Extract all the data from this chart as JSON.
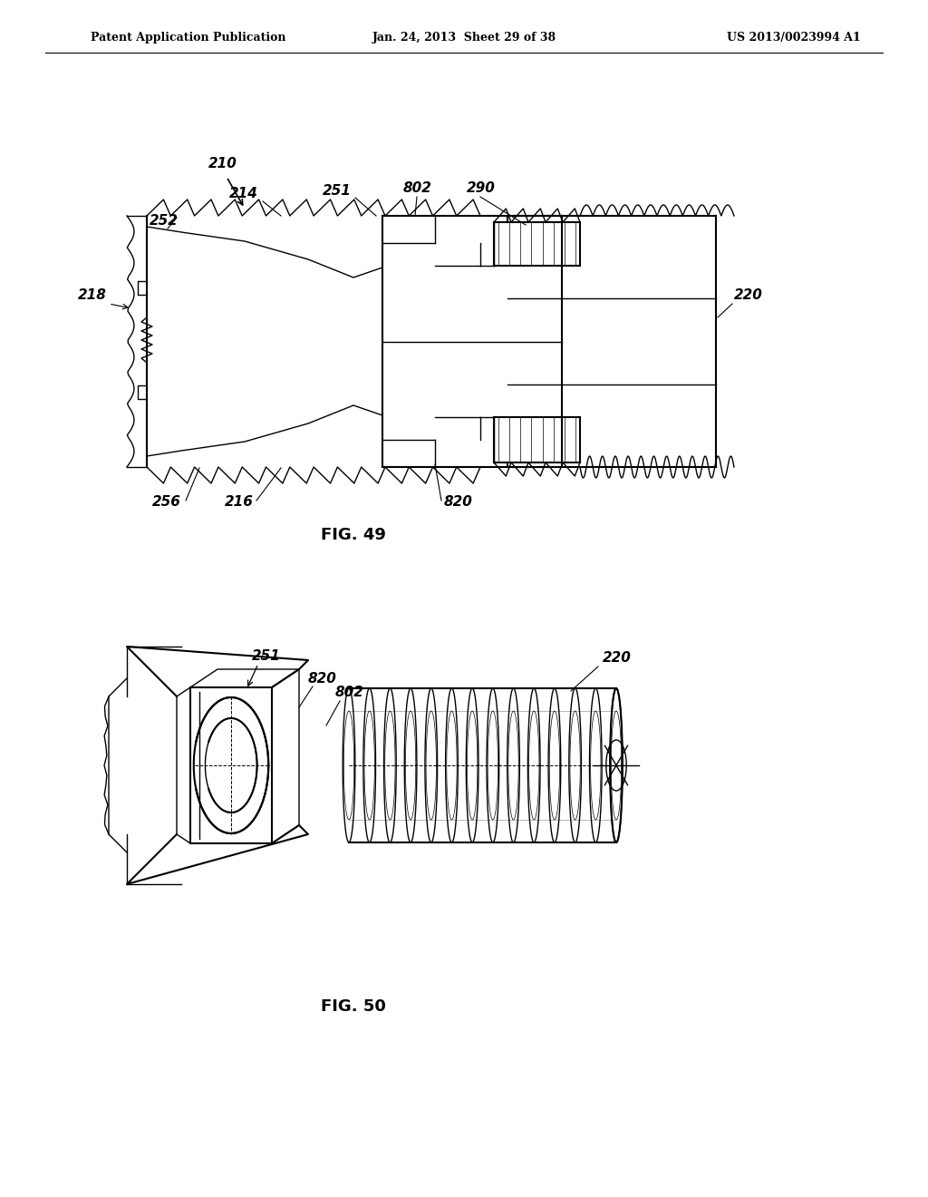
{
  "background_color": "#ffffff",
  "header_left": "Patent Application Publication",
  "header_center": "Jan. 24, 2013  Sheet 29 of 38",
  "header_right": "US 2013/0023994 A1",
  "fig49_label": "FIG. 49",
  "fig50_label": "FIG. 50"
}
